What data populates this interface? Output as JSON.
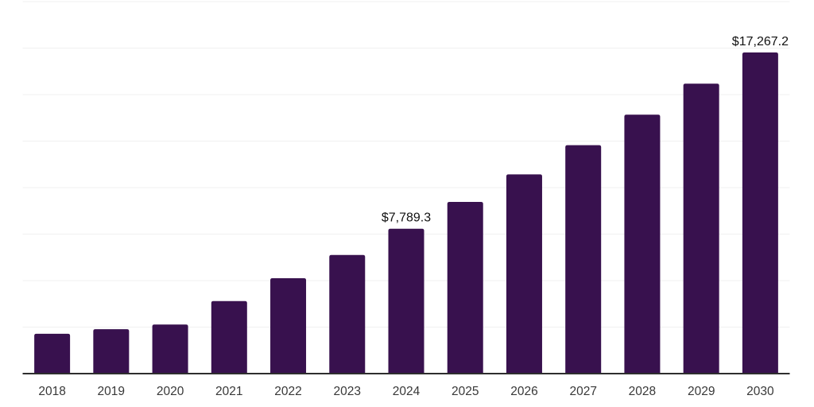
{
  "chart_data": {
    "type": "bar",
    "title": "",
    "xlabel": "",
    "ylabel": "",
    "categories": [
      "2018",
      "2019",
      "2020",
      "2021",
      "2022",
      "2023",
      "2024",
      "2025",
      "2026",
      "2027",
      "2028",
      "2029",
      "2030"
    ],
    "values": [
      2140,
      2390,
      2640,
      3900,
      5130,
      6380,
      7789.3,
      9230,
      10710,
      12280,
      13920,
      15590,
      17267.2
    ],
    "annotations": [
      {
        "category": "2024",
        "text": "$7,789.3"
      },
      {
        "category": "2030",
        "text": "$17,267.2"
      }
    ],
    "ylim": [
      0,
      20000
    ],
    "grid_step": 2500,
    "grid": "horizontal",
    "legend_position": "none",
    "y_tick_labels_visible": false,
    "colors": {
      "bar": "#38114E",
      "axis_line": "#2e2e2e",
      "gridline": "#f1f1f1",
      "value_label": "#111111",
      "x_tick_label": "#383838",
      "background": "#ffffff"
    }
  }
}
